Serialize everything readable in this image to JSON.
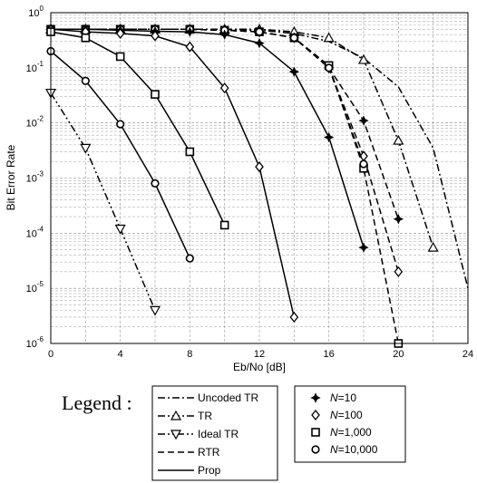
{
  "chart_data": {
    "type": "line",
    "title": "",
    "xlabel": "Eb/No [dB]",
    "ylabel": "Bit Error Rate",
    "xlim": [
      0,
      24
    ],
    "ylim": [
      1e-06,
      1
    ],
    "yscale": "log",
    "grid": true,
    "x_ticks": [
      "0",
      "4",
      "8",
      "12",
      "16",
      "20",
      "24"
    ],
    "y_ticks": [
      {
        "base": "10",
        "exp": "0"
      },
      {
        "base": "10",
        "exp": "-1"
      },
      {
        "base": "10",
        "exp": "-2"
      },
      {
        "base": "10",
        "exp": "-3"
      },
      {
        "base": "10",
        "exp": "-4"
      },
      {
        "base": "10",
        "exp": "-5"
      },
      {
        "base": "10",
        "exp": "-6"
      }
    ],
    "legend_title": "Legend :",
    "schemes": [
      {
        "label": "Uncoded TR",
        "style": "dashdot"
      },
      {
        "label": "TR",
        "style": "dashdot",
        "marker": "triangle-up"
      },
      {
        "label": "Ideal TR",
        "style": "dashdotdot",
        "marker": "triangle-down"
      },
      {
        "label": "RTR",
        "style": "dashed"
      },
      {
        "label": "Prop",
        "style": "solid"
      }
    ],
    "marker_legend": [
      {
        "N": "N",
        "eq": "=10",
        "marker": "star"
      },
      {
        "N": "N",
        "eq": "=100",
        "marker": "diamond"
      },
      {
        "N": "N",
        "eq": "=1,000",
        "marker": "square"
      },
      {
        "N": "N",
        "eq": "=10,000",
        "marker": "circle"
      }
    ],
    "series": [
      {
        "scheme": "Uncoded TR",
        "style": "dashdot",
        "marker": "none",
        "x": [
          0,
          2,
          4,
          6,
          8,
          10,
          12,
          14,
          16,
          18,
          20,
          22,
          24
        ],
        "y": [
          0.5,
          0.5,
          0.5,
          0.5,
          0.5,
          0.5,
          0.48,
          0.42,
          0.3,
          0.15,
          0.045,
          0.0035,
          1e-05
        ]
      },
      {
        "scheme": "TR",
        "style": "dashdot",
        "marker": "triangle-up",
        "x": [
          0,
          2,
          4,
          6,
          8,
          10,
          12,
          14,
          16,
          18,
          20,
          22
        ],
        "y": [
          0.5,
          0.5,
          0.5,
          0.5,
          0.5,
          0.5,
          0.5,
          0.45,
          0.35,
          0.14,
          0.0048,
          5.5e-05
        ]
      },
      {
        "scheme": "Ideal TR",
        "style": "dashdotdot",
        "marker": "triangle-down",
        "x": [
          0,
          2,
          4,
          6
        ],
        "y": [
          0.035,
          0.0035,
          0.00012,
          4e-06
        ]
      },
      {
        "scheme": "RTR",
        "style": "dashed",
        "marker": "star",
        "x": [
          0,
          2,
          4,
          6,
          8,
          10,
          12,
          14,
          16,
          18,
          20
        ],
        "y": [
          0.5,
          0.5,
          0.5,
          0.5,
          0.5,
          0.48,
          0.45,
          0.35,
          0.1,
          0.011,
          0.00018
        ]
      },
      {
        "scheme": "RTR",
        "style": "dashed",
        "marker": "diamond",
        "x": [
          0,
          2,
          4,
          6,
          8,
          10,
          12,
          14,
          16,
          18,
          20
        ],
        "y": [
          0.5,
          0.5,
          0.5,
          0.5,
          0.5,
          0.48,
          0.45,
          0.35,
          0.1,
          0.0025,
          2e-05
        ]
      },
      {
        "scheme": "RTR",
        "style": "dashed",
        "marker": "square",
        "x": [
          0,
          2,
          4,
          6,
          8,
          10,
          12,
          14,
          16,
          18,
          20
        ],
        "y": [
          0.5,
          0.5,
          0.5,
          0.5,
          0.5,
          0.48,
          0.45,
          0.35,
          0.11,
          0.0015,
          1e-06
        ]
      },
      {
        "scheme": "RTR",
        "style": "dashed",
        "marker": "circle",
        "x": [
          0,
          2,
          4,
          6,
          8,
          10,
          12,
          14,
          16,
          18
        ],
        "y": [
          0.5,
          0.5,
          0.5,
          0.5,
          0.5,
          0.48,
          0.45,
          0.35,
          0.1,
          0.0018
        ]
      },
      {
        "scheme": "Prop",
        "style": "solid",
        "marker": "star",
        "x": [
          0,
          2,
          4,
          6,
          8,
          10,
          12,
          14,
          16,
          18
        ],
        "y": [
          0.5,
          0.5,
          0.48,
          0.46,
          0.45,
          0.4,
          0.28,
          0.085,
          0.0055,
          5.5e-05
        ]
      },
      {
        "scheme": "Prop",
        "style": "solid",
        "marker": "diamond",
        "x": [
          0,
          2,
          4,
          6,
          8,
          10,
          12,
          14
        ],
        "y": [
          0.5,
          0.45,
          0.42,
          0.38,
          0.24,
          0.043,
          0.0016,
          3e-06
        ]
      },
      {
        "scheme": "Prop",
        "style": "solid",
        "marker": "square",
        "x": [
          0,
          2,
          4,
          6,
          8,
          10
        ],
        "y": [
          0.45,
          0.35,
          0.16,
          0.033,
          0.003,
          0.00014
        ]
      },
      {
        "scheme": "Prop",
        "style": "solid",
        "marker": "circle",
        "x": [
          0,
          2,
          4,
          6,
          8
        ],
        "y": [
          0.2,
          0.058,
          0.0095,
          0.0008,
          3.5e-05
        ]
      }
    ]
  }
}
